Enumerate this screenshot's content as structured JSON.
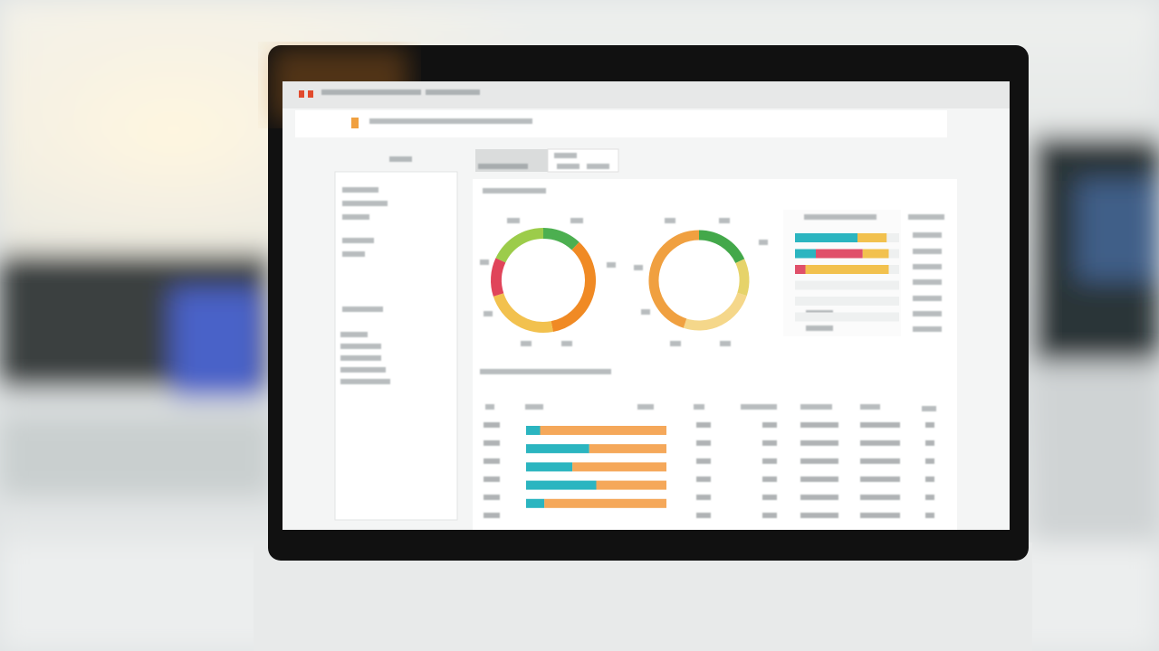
{
  "chart_data": [
    {
      "type": "pie",
      "values": [
        12,
        35,
        23,
        12,
        18
      ],
      "colors": [
        "#4caf50",
        "#f08a24",
        "#f2c14e",
        "#e0445a",
        "#9ccc4a"
      ]
    },
    {
      "type": "pie",
      "values": [
        18,
        12,
        25,
        45
      ],
      "colors": [
        "#43a84a",
        "#e6d36a",
        "#f5d78a",
        "#f0a040"
      ]
    },
    {
      "type": "bar",
      "orientation": "horizontal",
      "stacked": true,
      "xlim": [
        0,
        100
      ],
      "series": [
        {
          "color": "#2bb5c0",
          "values": [
            60,
            20,
            0,
            0,
            0,
            0
          ]
        },
        {
          "color": "#e0506a",
          "values": [
            0,
            45,
            10,
            0,
            0,
            0
          ]
        },
        {
          "color": "#f2c14e",
          "values": [
            28,
            25,
            80,
            0,
            0,
            0
          ]
        }
      ]
    },
    {
      "type": "bar",
      "orientation": "horizontal",
      "stacked": true,
      "xlim": [
        0,
        100
      ],
      "series": [
        {
          "color": "#2bb5c0",
          "values": [
            10,
            45,
            33,
            50,
            13
          ]
        },
        {
          "color": "#f5a85a",
          "values": [
            90,
            55,
            67,
            50,
            87
          ]
        }
      ]
    }
  ]
}
